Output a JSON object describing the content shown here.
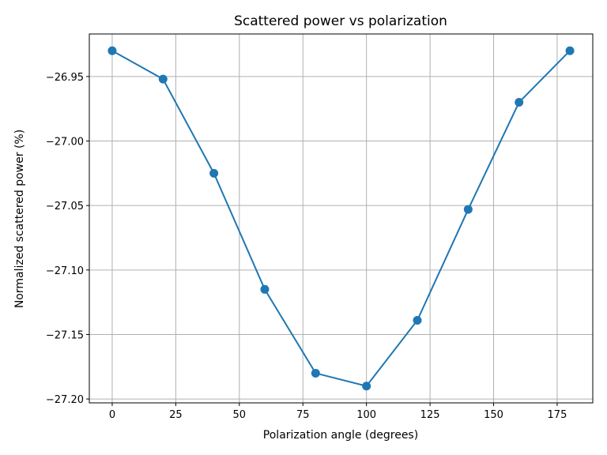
{
  "chart_data": {
    "type": "line",
    "title": "Scattered power vs polarization",
    "xlabel": "Polarization angle (degrees)",
    "ylabel": "Normalized scattered power (%)",
    "x": [
      0,
      20,
      40,
      60,
      80,
      100,
      120,
      140,
      160,
      180
    ],
    "series": [
      {
        "values": [
          -26.93,
          -26.952,
          -27.025,
          -27.115,
          -27.18,
          -27.19,
          -27.139,
          -27.053,
          -26.97,
          -26.93
        ],
        "color": "#1f77b4",
        "marker": "circle"
      }
    ],
    "xlim": [
      -9,
      189
    ],
    "ylim": [
      -27.203,
      -26.917
    ],
    "xticks": [
      0,
      25,
      50,
      75,
      100,
      125,
      150,
      175
    ],
    "xtick_labels": [
      "0",
      "25",
      "50",
      "75",
      "100",
      "125",
      "150",
      "175"
    ],
    "yticks": [
      -26.95,
      -27.0,
      -27.05,
      -27.1,
      -27.15,
      -27.2
    ],
    "ytick_labels": [
      "−26.95",
      "−27.00",
      "−27.05",
      "−27.10",
      "−27.15",
      "−27.20"
    ],
    "grid": true,
    "legend": "none"
  }
}
